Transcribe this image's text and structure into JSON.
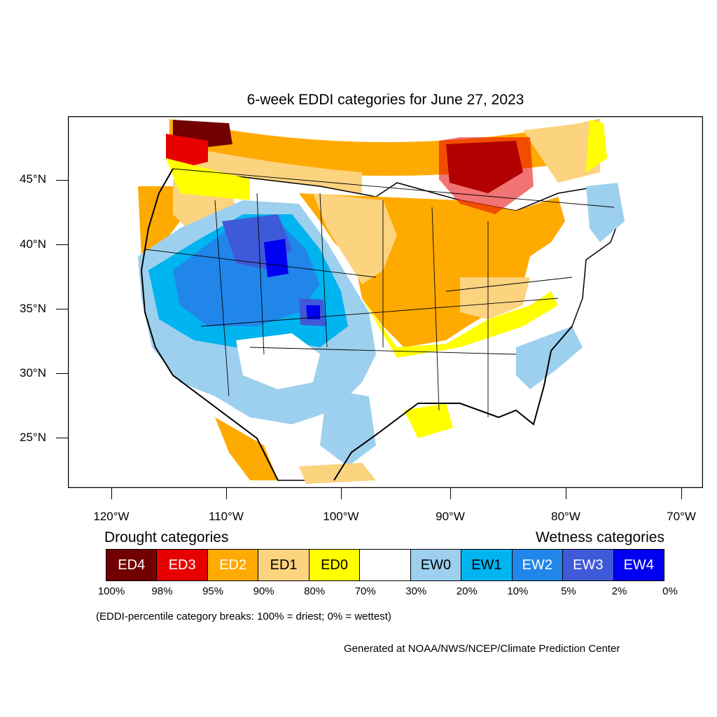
{
  "title": "6-week EDDI categories for June 27, 2023",
  "lat_labels": [
    "45°N",
    "40°N",
    "35°N",
    "30°N",
    "25°N"
  ],
  "lon_labels": [
    "120°W",
    "110°W",
    "100°W",
    "90°W",
    "80°W",
    "70°W"
  ],
  "drought_heading": "Drought categories",
  "wetness_heading": "Wetness categories",
  "legend": [
    {
      "label": "ED4",
      "color": "#730000",
      "text_color": "#ffffff"
    },
    {
      "label": "ED3",
      "color": "#e60000",
      "text_color": "#ffffff"
    },
    {
      "label": "ED2",
      "color": "#ffaa00",
      "text_color": "#ffffff"
    },
    {
      "label": "ED1",
      "color": "#fcd37f",
      "text_color": "#000000"
    },
    {
      "label": "ED0",
      "color": "#ffff00",
      "text_color": "#000000"
    },
    {
      "label": "",
      "color": "#ffffff",
      "text_color": "#000000"
    },
    {
      "label": "EW0",
      "color": "#9dd0ee",
      "text_color": "#000000"
    },
    {
      "label": "EW1",
      "color": "#00b4f0",
      "text_color": "#000000"
    },
    {
      "label": "EW2",
      "color": "#2186ea",
      "text_color": "#ffffff"
    },
    {
      "label": "EW3",
      "color": "#3f5ad8",
      "text_color": "#ffffff"
    },
    {
      "label": "EW4",
      "color": "#0000f0",
      "text_color": "#ffffff"
    }
  ],
  "percentiles": [
    "100%",
    "98%",
    "95%",
    "90%",
    "80%",
    "70%",
    "30%",
    "20%",
    "10%",
    "5%",
    "2%",
    "0%"
  ],
  "note": "(EDDI-percentile category breaks: 100% = driest; 0% = wettest)",
  "credit": "Generated at NOAA/NWS/NCEP/Climate Prediction Center"
}
